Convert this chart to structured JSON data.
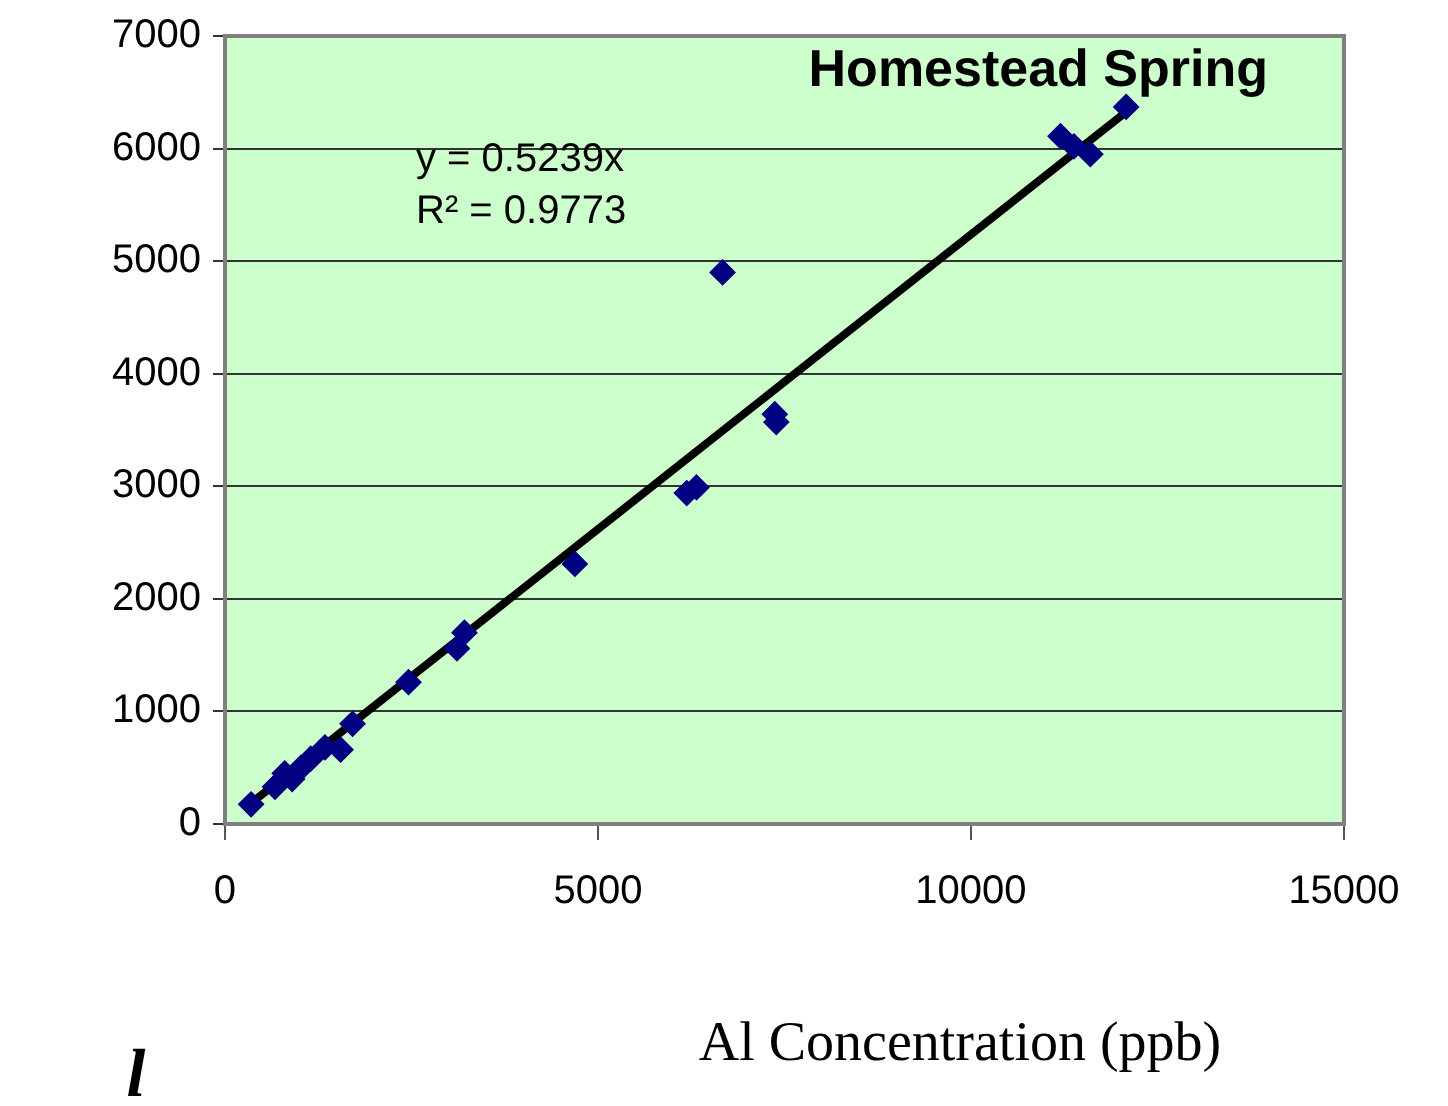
{
  "chart_data": {
    "type": "scatter",
    "title": "Homestead Spring",
    "xlabel": "Al Concentration (ppb)",
    "annotations": [
      "y = 0.5239x",
      "R² = 0.9773",
      "l"
    ],
    "xlim": [
      0,
      15000
    ],
    "xticks": [
      0,
      5000,
      10000,
      15000
    ],
    "ylim": [
      0,
      7000
    ],
    "yticks": [
      0,
      1000,
      2000,
      3000,
      4000,
      5000,
      6000,
      7000
    ],
    "grid": "y",
    "legend": false,
    "marker": "diamond",
    "series": [
      {
        "color": "#000080",
        "x": [
          350,
          670,
          800,
          900,
          1020,
          1150,
          1340,
          1550,
          1710,
          2460,
          3110,
          3210,
          4690,
          6190,
          6320,
          6670,
          7370,
          7390,
          11200,
          11380,
          11600,
          12080
        ],
        "values": [
          175,
          330,
          450,
          400,
          500,
          580,
          680,
          660,
          890,
          1260,
          1560,
          1700,
          2310,
          2940,
          2990,
          4900,
          3640,
          3570,
          6110,
          6020,
          5950,
          6370
        ]
      },
      {
        "type": "line",
        "marker": "none",
        "color": "#000000",
        "x": [
          380,
          12030
        ],
        "values": [
          200,
          6300
        ]
      }
    ]
  }
}
